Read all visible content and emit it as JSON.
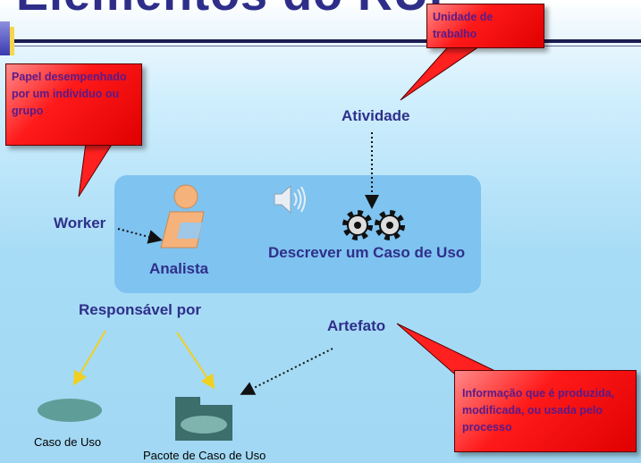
{
  "slide": {
    "title": "Elementos do RUP"
  },
  "labels": {
    "atividade": "Atividade",
    "worker": "Worker",
    "analista": "Analista",
    "descrever": "Descrever um Caso de Uso",
    "responsavel": "Responsável por",
    "artefato": "Artefato",
    "caso_uso": "Caso de Uso",
    "pacote": "Pacote de Caso de Uso"
  },
  "callouts": {
    "unidade": "Unidade de trabalho",
    "papel": "Papel desempenhado por um indivíduo ou grupo",
    "informacao": "Informação que é produzida, modificada, ou usada pelo processo"
  },
  "colors": {
    "label": "#2f2f8a",
    "callout_fill": "#ff1a1a",
    "callout_text": "#5a1a8a",
    "panel": "#7fc3f0",
    "artifact": "#5f9e98",
    "arrow_yellow": "#f0d020"
  },
  "icons": {
    "worker": "worker-person-icon",
    "activity": "gears-icon",
    "sound": "speaker-icon",
    "use_case": "use-case-ellipse-icon",
    "package": "folder-package-icon"
  }
}
